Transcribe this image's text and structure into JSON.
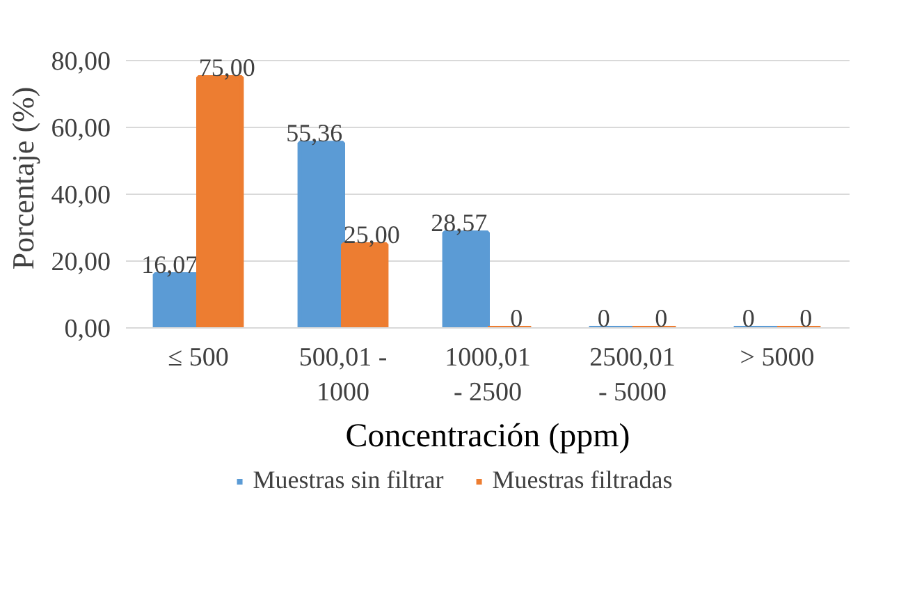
{
  "chart_data": {
    "type": "bar",
    "xlabel": "Concentración (ppm)",
    "ylabel": "Porcentaje (%)",
    "categories": [
      "≤ 500",
      "500,01 -\n1000",
      "1000,01\n- 2500",
      "2500,01\n- 5000",
      "> 5000"
    ],
    "series": [
      {
        "name": "Muestras sin filtrar",
        "color": "#5b9bd5",
        "values": [
          16.07,
          55.36,
          28.57,
          0,
          0
        ],
        "value_labels": [
          "16,07",
          "55,36",
          "28,57",
          "0",
          "0"
        ]
      },
      {
        "name": "Muestras filtradas",
        "color": "#ed7d31",
        "values": [
          75,
          25,
          0,
          0,
          0
        ],
        "value_labels": [
          "75,00",
          "25,00",
          "0",
          "0",
          "0"
        ]
      }
    ],
    "ylim": [
      0,
      80
    ],
    "yticks": [
      {
        "value": 0,
        "label": "0,00"
      },
      {
        "value": 20,
        "label": "20,00"
      },
      {
        "value": 40,
        "label": "40,00"
      },
      {
        "value": 60,
        "label": "60,00"
      },
      {
        "value": 80,
        "label": "80,00"
      }
    ],
    "grid": "y",
    "legend": "bottom"
  }
}
